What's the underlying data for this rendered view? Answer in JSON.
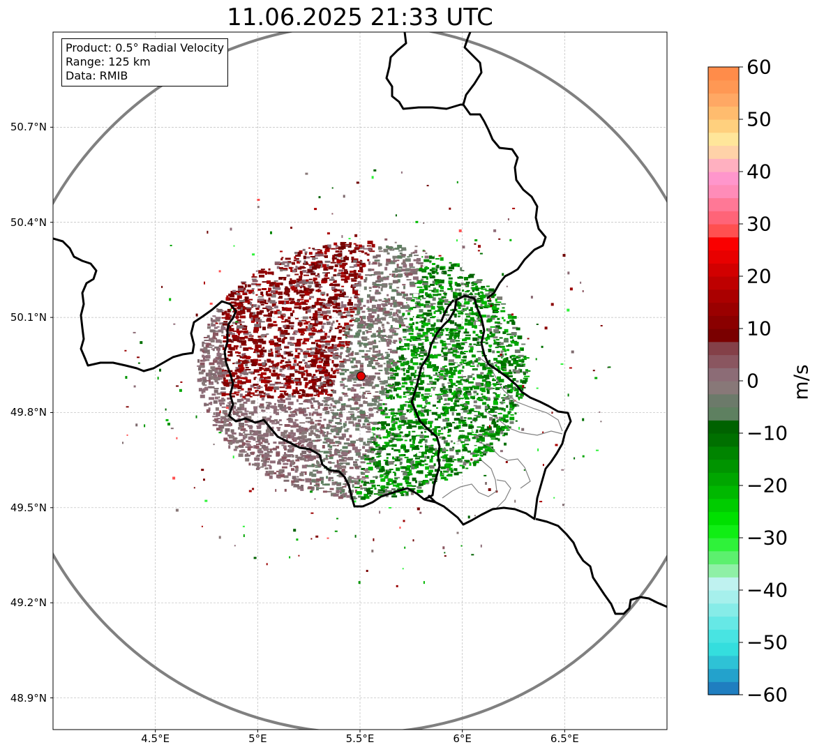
{
  "title": "11.06.2025 21:33 UTC",
  "info": {
    "product": "Product: 0.5° Radial Velocity",
    "range": "Range: 125 km",
    "data": "Data: RMIB"
  },
  "map": {
    "lon_range": [
      4.0,
      7.0
    ],
    "lat_range": [
      48.8,
      51.0
    ],
    "lat_ticks": [
      {
        "value": 50.7,
        "label": "50.7°N"
      },
      {
        "value": 50.4,
        "label": "50.4°N"
      },
      {
        "value": 50.1,
        "label": "50.1°N"
      },
      {
        "value": 49.8,
        "label": "49.8°N"
      },
      {
        "value": 49.5,
        "label": "49.5°N"
      },
      {
        "value": 49.2,
        "label": "49.2°N"
      },
      {
        "value": 48.9,
        "label": "48.9°N"
      }
    ],
    "lon_ticks": [
      {
        "value": 4.5,
        "label": "4.5°E"
      },
      {
        "value": 5.0,
        "label": "5°E"
      },
      {
        "value": 5.5,
        "label": "5.5°E"
      },
      {
        "value": 6.0,
        "label": "6°E"
      },
      {
        "value": 6.5,
        "label": "6.5°E"
      }
    ],
    "radar_site": {
      "lon": 5.505,
      "lat": 49.915
    },
    "range_ring_color": "#808080",
    "border_color": "#000000",
    "grid": true
  },
  "colorbar": {
    "label": "m/s",
    "vmin": -60,
    "vmax": 60,
    "ticks": [
      {
        "value": 60,
        "label": "60"
      },
      {
        "value": 50,
        "label": "50"
      },
      {
        "value": 40,
        "label": "40"
      },
      {
        "value": 30,
        "label": "30"
      },
      {
        "value": 20,
        "label": "20"
      },
      {
        "value": 10,
        "label": "10"
      },
      {
        "value": 0,
        "label": "0"
      },
      {
        "value": -10,
        "label": "−10"
      },
      {
        "value": -20,
        "label": "−20"
      },
      {
        "value": -30,
        "label": "−30"
      },
      {
        "value": -40,
        "label": "−40"
      },
      {
        "value": -50,
        "label": "−50"
      },
      {
        "value": -60,
        "label": "−60"
      }
    ],
    "colors": [
      "#1f7ec0",
      "#23a2cc",
      "#2ec2d6",
      "#34dede",
      "#48e4e2",
      "#66e8e6",
      "#86ece8",
      "#a6f0ec",
      "#bff2f0",
      "#8ff0a6",
      "#5cf06e",
      "#2ff23a",
      "#10ee14",
      "#00e000",
      "#00cc00",
      "#00b800",
      "#00a600",
      "#009400",
      "#008400",
      "#007000",
      "#006200",
      "#5e8060",
      "#6c7a6a",
      "#887878",
      "#8c6c76",
      "#8a5660",
      "#844048",
      "#7a0000",
      "#8a0000",
      "#9a0000",
      "#aa0000",
      "#be0000",
      "#d20000",
      "#e80000",
      "#fa0000",
      "#ff5050",
      "#ff6478",
      "#ff7896",
      "#ff8cb8",
      "#ff96cc",
      "#ffb0c0",
      "#ffd2a8",
      "#ffe69a",
      "#ffd07e",
      "#ffbc6e",
      "#ffa864",
      "#ff9854",
      "#ff8c4a"
    ]
  }
}
